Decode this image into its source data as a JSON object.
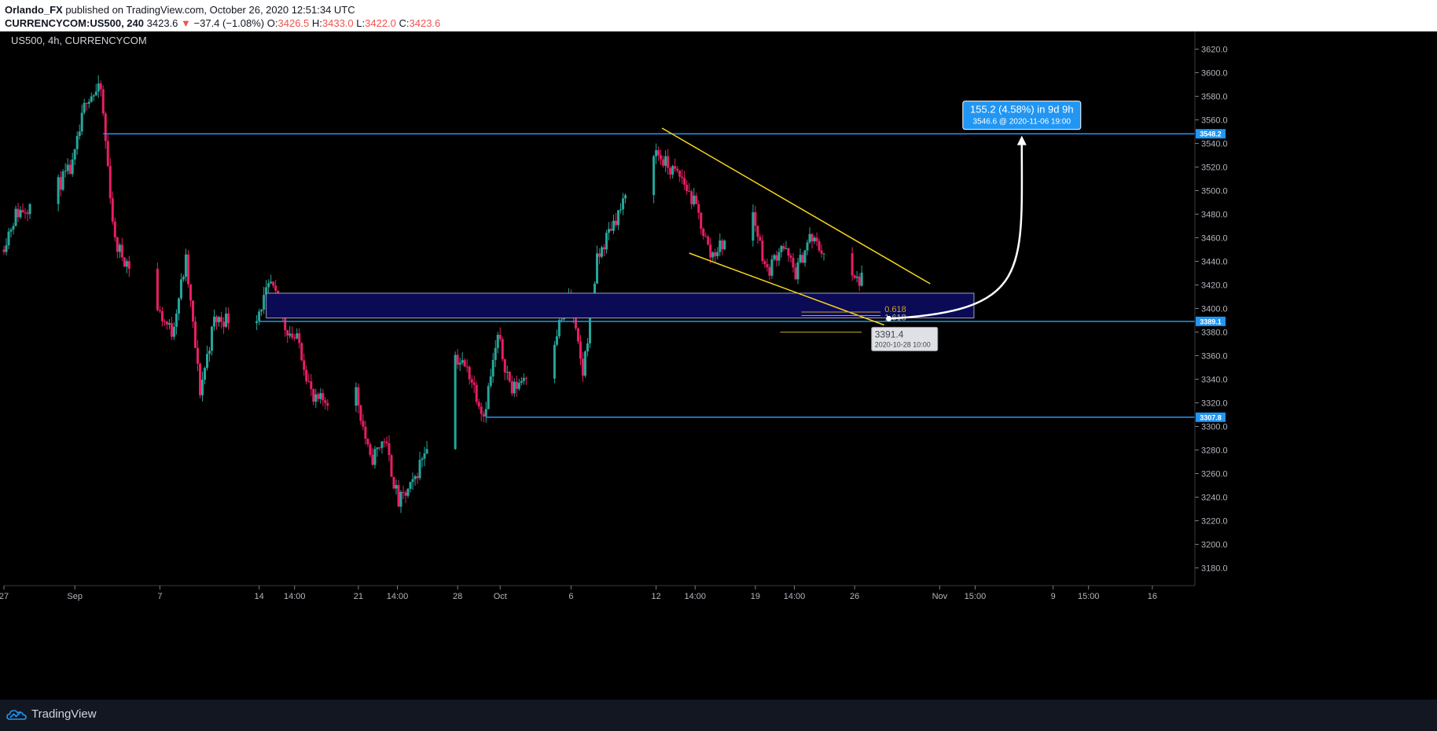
{
  "header": {
    "author": "Orlando_FX",
    "published": "published on TradingView.com, October 26, 2020 12:51:34 UTC",
    "symbol": "CURRENCYCOM:US500, 240",
    "last": "3423.6",
    "change": "−37.4 (−1.08%)",
    "o_label": "O:",
    "o": "3426.5",
    "h_label": "H:",
    "h": "3433.0",
    "l_label": "L:",
    "l": "3422.0",
    "c_label": "C:",
    "c": "3423.6"
  },
  "legend": {
    "title": "US500, 4h, CURRENCYCOM"
  },
  "footer": {
    "brand": "TradingView"
  },
  "colors": {
    "up": "#26a69a",
    "down": "#e91e63",
    "level": "#2196f3",
    "trend": "#f9d71c",
    "zone_fill": "#0b0b55",
    "zone_border": "#9aa0c8",
    "fib": "#c9a227",
    "projection": "#ffffff"
  },
  "icons": {
    "logo": "tradingview-cloud-icon",
    "down_arrow": "triangle-down-icon"
  },
  "chart_data": {
    "type": "candlestick",
    "title": "US500, 4h, CURRENCYCOM",
    "ylim": [
      3165,
      3635
    ],
    "y_ticks": [
      3180,
      3200,
      3220,
      3240,
      3260,
      3280,
      3300,
      3320,
      3340,
      3360,
      3380,
      3400,
      3420,
      3440,
      3460,
      3480,
      3500,
      3520,
      3540,
      3560,
      3580,
      3600,
      3620
    ],
    "x_ticks": [
      "27",
      "Sep",
      "7",
      "14",
      "14:00",
      "21",
      "14:00",
      "28",
      "Oct",
      "6",
      "12",
      "14:00",
      "19",
      "14:00",
      "26",
      "Nov",
      "15:00",
      "9",
      "15:00",
      "16"
    ],
    "x_range": [
      "2020-08-27",
      "2020-11-19"
    ],
    "price_anchors": [
      [
        "2020-08-27",
        3450
      ],
      [
        "2020-08-28",
        3480
      ],
      [
        "2020-08-31",
        3505
      ],
      [
        "2020-09-01",
        3520
      ],
      [
        "2020-09-02",
        3580
      ],
      [
        "2020-09-03",
        3585
      ],
      [
        "2020-09-04",
        3455
      ],
      [
        "2020-09-08",
        3380
      ],
      [
        "2020-09-09",
        3440
      ],
      [
        "2020-09-10",
        3330
      ],
      [
        "2020-09-11",
        3390
      ],
      [
        "2020-09-14",
        3395
      ],
      [
        "2020-09-15",
        3420
      ],
      [
        "2020-09-16",
        3385
      ],
      [
        "2020-09-17",
        3370
      ],
      [
        "2020-09-18",
        3320
      ],
      [
        "2020-09-21",
        3330
      ],
      [
        "2020-09-22",
        3270
      ],
      [
        "2020-09-23",
        3290
      ],
      [
        "2020-09-24",
        3235
      ],
      [
        "2020-09-25",
        3250
      ],
      [
        "2020-09-28",
        3360
      ],
      [
        "2020-09-29",
        3345
      ],
      [
        "2020-09-30",
        3310
      ],
      [
        "2020-10-01",
        3375
      ],
      [
        "2020-10-02",
        3330
      ],
      [
        "2020-10-05",
        3375
      ],
      [
        "2020-10-06",
        3410
      ],
      [
        "2020-10-07",
        3345
      ],
      [
        "2020-10-08",
        3440
      ],
      [
        "2020-10-09",
        3470
      ],
      [
        "2020-10-12",
        3535
      ],
      [
        "2020-10-13",
        3520
      ],
      [
        "2020-10-14",
        3510
      ],
      [
        "2020-10-15",
        3485
      ],
      [
        "2020-10-16",
        3445
      ],
      [
        "2020-10-19",
        3480
      ],
      [
        "2020-10-20",
        3430
      ],
      [
        "2020-10-21",
        3455
      ],
      [
        "2020-10-22",
        3430
      ],
      [
        "2020-10-23",
        3460
      ],
      [
        "2020-10-26",
        3424
      ]
    ],
    "last_price": 3423.6,
    "levels": [
      {
        "label": "3548.2",
        "price": 3548.2,
        "from": "2020-09-03"
      },
      {
        "label": "3389.1",
        "price": 3389.1,
        "from": "2020-09-14"
      },
      {
        "label": "3307.8",
        "price": 3307.8,
        "from": "2020-09-30"
      }
    ],
    "zone": {
      "from": "2020-09-14 12:00",
      "to": "2020-11-03 10:00",
      "price_low": 3392,
      "price_high": 3413
    },
    "trendlines": [
      {
        "from": [
          "2020-10-12 10:00",
          3553
        ],
        "to": [
          "2020-10-31 08:00",
          3421
        ]
      },
      {
        "from": [
          "2020-10-14 08:00",
          3447
        ],
        "to": [
          "2020-10-28 02:00",
          3386
        ]
      }
    ],
    "fibs": [
      {
        "label": "0.618",
        "price": 3397
      },
      {
        "label": "1.618",
        "price": 3394
      }
    ],
    "target_point": {
      "price": 3391.4,
      "label": "3391.4",
      "date_label": "2020-10-28 10:00"
    },
    "measure": {
      "label": "155.2 (4.58%) in 9d 9h",
      "detail": "3546.6 @ 2020-11-06  19:00",
      "price": 3546.6
    }
  }
}
